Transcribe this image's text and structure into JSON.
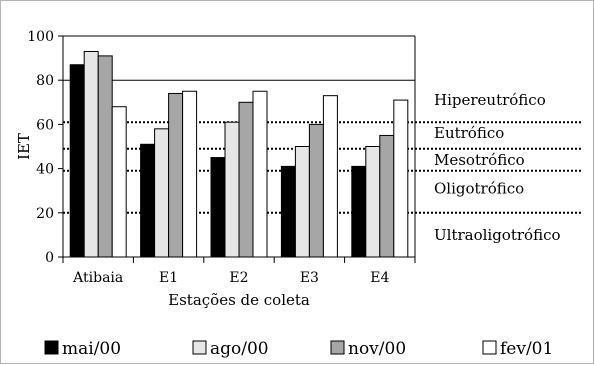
{
  "chart_data": {
    "type": "bar",
    "title": "",
    "xlabel": "Estações de coleta",
    "ylabel": "IET",
    "ylim": [
      0,
      100
    ],
    "yticks": [
      0,
      20,
      40,
      60,
      80,
      100
    ],
    "categories": [
      "Atibaia",
      "E1",
      "E2",
      "E3",
      "E4"
    ],
    "series": [
      {
        "name": "mai/00",
        "color": "#000000",
        "values": [
          87,
          51,
          45,
          41,
          41
        ]
      },
      {
        "name": "ago/00",
        "color": "#e6e6e6",
        "values": [
          93,
          58,
          61,
          50,
          50
        ]
      },
      {
        "name": "nov/00",
        "color": "#a6a6a6",
        "values": [
          91,
          74,
          70,
          60,
          55
        ]
      },
      {
        "name": "fev/01",
        "color": "#ffffff",
        "values": [
          68,
          75,
          75,
          73,
          71
        ]
      }
    ],
    "reference_lines": [
      {
        "value": 80,
        "style": "solid"
      },
      {
        "value": 61,
        "style": "dotted"
      },
      {
        "value": 49,
        "style": "dotted"
      },
      {
        "value": 39,
        "style": "dotted"
      },
      {
        "value": 20,
        "style": "dotted"
      }
    ],
    "zones": [
      {
        "label": "Hipereutrófico",
        "value": 71
      },
      {
        "label": "Eutrófico",
        "value": 56
      },
      {
        "label": "Mesotrófico",
        "value": 44
      },
      {
        "label": "Oligotrófico",
        "value": 31
      },
      {
        "label": "Ultraoligotrófico",
        "value": 10
      }
    ],
    "legend_position": "bottom"
  }
}
